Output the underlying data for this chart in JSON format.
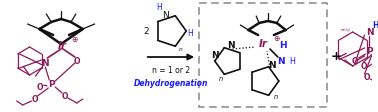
{
  "fig_width": 3.78,
  "fig_height": 1.13,
  "dpi": 100,
  "bg_color": "#ffffff",
  "pur": "#8B1A5A",
  "blu": "#1a1aff",
  "blk": "#111111",
  "gry": "#888888",
  "text_n12": "n = 1 or 2",
  "text_dehyd": "Dehydrogenation",
  "text_2": "2",
  "text_plus": "+"
}
